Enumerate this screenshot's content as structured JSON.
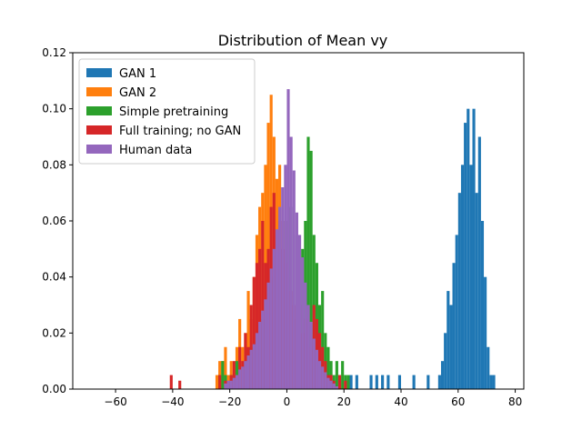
{
  "chart_data": {
    "type": "histogram",
    "title": "Distribution of Mean vy",
    "xlabel": "",
    "ylabel": "",
    "xlim": [
      -75,
      83
    ],
    "ylim": [
      0,
      0.12
    ],
    "x_ticks": [
      -60,
      -40,
      -20,
      0,
      20,
      40,
      60,
      80
    ],
    "x_tick_labels": [
      "−60",
      "−40",
      "−20",
      "0",
      "20",
      "40",
      "60",
      "80"
    ],
    "y_ticks": [
      0.0,
      0.02,
      0.04,
      0.06,
      0.08,
      0.1,
      0.12
    ],
    "y_tick_labels": [
      "0.00",
      "0.02",
      "0.04",
      "0.06",
      "0.08",
      "0.10",
      "0.12"
    ],
    "grid": false,
    "legend_position": "top-left",
    "series": [
      {
        "name": "GAN 1",
        "color": "#1f77b4",
        "bins": [
          [
            22,
            0.005
          ],
          [
            24,
            0.005
          ],
          [
            29,
            0.005
          ],
          [
            31,
            0.005
          ],
          [
            33,
            0.005
          ],
          [
            35,
            0.005
          ],
          [
            39,
            0.005
          ],
          [
            44,
            0.005
          ],
          [
            49,
            0.005
          ],
          [
            53,
            0.005
          ],
          [
            54,
            0.01
          ],
          [
            55,
            0.02
          ],
          [
            56,
            0.035
          ],
          [
            57,
            0.03
          ],
          [
            58,
            0.045
          ],
          [
            59,
            0.055
          ],
          [
            60,
            0.07
          ],
          [
            61,
            0.08
          ],
          [
            62,
            0.095
          ],
          [
            63,
            0.1
          ],
          [
            64,
            0.08
          ],
          [
            65,
            0.1
          ],
          [
            66,
            0.07
          ],
          [
            67,
            0.09
          ],
          [
            68,
            0.06
          ],
          [
            69,
            0.04
          ],
          [
            70,
            0.015
          ],
          [
            71,
            0.005
          ],
          [
            72,
            0.005
          ]
        ]
      },
      {
        "name": "GAN 2",
        "color": "#ff7f0e",
        "bins": [
          [
            -25,
            0.005
          ],
          [
            -24,
            0.01
          ],
          [
            -23,
            0.01
          ],
          [
            -22,
            0.015
          ],
          [
            -21,
            0.005
          ],
          [
            -20,
            0.01
          ],
          [
            -19,
            0.005
          ],
          [
            -18,
            0.015
          ],
          [
            -17,
            0.025
          ],
          [
            -16,
            0.015
          ],
          [
            -15,
            0.02
          ],
          [
            -14,
            0.035
          ],
          [
            -13,
            0.025
          ],
          [
            -12,
            0.04
          ],
          [
            -11,
            0.055
          ],
          [
            -10,
            0.065
          ],
          [
            -9,
            0.07
          ],
          [
            -8,
            0.08
          ],
          [
            -7,
            0.095
          ],
          [
            -6,
            0.105
          ],
          [
            -5,
            0.09
          ],
          [
            -4,
            0.075
          ],
          [
            -3,
            0.08
          ],
          [
            -2,
            0.06
          ],
          [
            -1,
            0.05
          ]
        ]
      },
      {
        "name": "Simple pretraining",
        "color": "#2ca02c",
        "bins": [
          [
            -24,
            0.005
          ],
          [
            -23,
            0.01
          ],
          [
            -22,
            0.005
          ],
          [
            -20,
            0.005
          ],
          [
            -18,
            0.01
          ],
          [
            -15,
            0.01
          ],
          [
            -13,
            0.015
          ],
          [
            -11,
            0.02
          ],
          [
            -9,
            0.025
          ],
          [
            -7,
            0.03
          ],
          [
            -5,
            0.04
          ],
          [
            -3,
            0.05
          ],
          [
            -1,
            0.06
          ],
          [
            1,
            0.065
          ],
          [
            3,
            0.055
          ],
          [
            5,
            0.05
          ],
          [
            6,
            0.06
          ],
          [
            7,
            0.09
          ],
          [
            8,
            0.085
          ],
          [
            9,
            0.055
          ],
          [
            10,
            0.045
          ],
          [
            11,
            0.03
          ],
          [
            12,
            0.035
          ],
          [
            13,
            0.02
          ],
          [
            14,
            0.015
          ],
          [
            15,
            0.01
          ],
          [
            16,
            0.005
          ],
          [
            17,
            0.01
          ],
          [
            18,
            0.005
          ],
          [
            19,
            0.01
          ],
          [
            20,
            0.005
          ],
          [
            21,
            0.005
          ]
        ]
      },
      {
        "name": "Full training; no GAN",
        "color": "#d62728",
        "bins": [
          [
            -41,
            0.005
          ],
          [
            -38,
            0.003
          ],
          [
            -24,
            0.005
          ],
          [
            -22,
            0.003
          ],
          [
            -20,
            0.005
          ],
          [
            -19,
            0.01
          ],
          [
            -18,
            0.005
          ],
          [
            -17,
            0.015
          ],
          [
            -16,
            0.01
          ],
          [
            -15,
            0.02
          ],
          [
            -14,
            0.015
          ],
          [
            -13,
            0.03
          ],
          [
            -12,
            0.04
          ],
          [
            -11,
            0.045
          ],
          [
            -10,
            0.05
          ],
          [
            -9,
            0.06
          ],
          [
            -8,
            0.045
          ],
          [
            -7,
            0.05
          ],
          [
            -6,
            0.065
          ],
          [
            -5,
            0.07
          ],
          [
            -4,
            0.055
          ],
          [
            -3,
            0.06
          ],
          [
            -2,
            0.05
          ],
          [
            -1,
            0.045
          ],
          [
            0,
            0.04
          ],
          [
            1,
            0.035
          ],
          [
            2,
            0.03
          ],
          [
            3,
            0.025
          ],
          [
            4,
            0.03
          ],
          [
            5,
            0.02
          ],
          [
            6,
            0.025
          ],
          [
            7,
            0.03
          ],
          [
            8,
            0.015
          ],
          [
            9,
            0.03
          ],
          [
            10,
            0.025
          ],
          [
            11,
            0.02
          ],
          [
            12,
            0.015
          ],
          [
            13,
            0.01
          ],
          [
            14,
            0.005
          ],
          [
            15,
            0.005
          ],
          [
            16,
            0.003
          ],
          [
            18,
            0.005
          ],
          [
            20,
            0.003
          ]
        ]
      },
      {
        "name": "Human data",
        "color": "#9467bd",
        "bins": [
          [
            -22,
            0.002
          ],
          [
            -21,
            0.003
          ],
          [
            -20,
            0.003
          ],
          [
            -19,
            0.004
          ],
          [
            -18,
            0.005
          ],
          [
            -17,
            0.007
          ],
          [
            -16,
            0.008
          ],
          [
            -15,
            0.01
          ],
          [
            -14,
            0.012
          ],
          [
            -13,
            0.014
          ],
          [
            -12,
            0.016
          ],
          [
            -11,
            0.02
          ],
          [
            -10,
            0.024
          ],
          [
            -9,
            0.028
          ],
          [
            -8,
            0.032
          ],
          [
            -7,
            0.038
          ],
          [
            -6,
            0.043
          ],
          [
            -5,
            0.05
          ],
          [
            -4,
            0.057
          ],
          [
            -3,
            0.065
          ],
          [
            -2,
            0.072
          ],
          [
            -1,
            0.08
          ],
          [
            0,
            0.107
          ],
          [
            1,
            0.09
          ],
          [
            2,
            0.078
          ],
          [
            3,
            0.063
          ],
          [
            4,
            0.055
          ],
          [
            5,
            0.047
          ],
          [
            6,
            0.038
          ],
          [
            7,
            0.03
          ],
          [
            8,
            0.024
          ],
          [
            9,
            0.018
          ],
          [
            10,
            0.014
          ],
          [
            11,
            0.01
          ],
          [
            12,
            0.008
          ],
          [
            13,
            0.006
          ],
          [
            14,
            0.004
          ],
          [
            15,
            0.003
          ],
          [
            16,
            0.002
          ],
          [
            17,
            0.001
          ]
        ]
      }
    ]
  }
}
